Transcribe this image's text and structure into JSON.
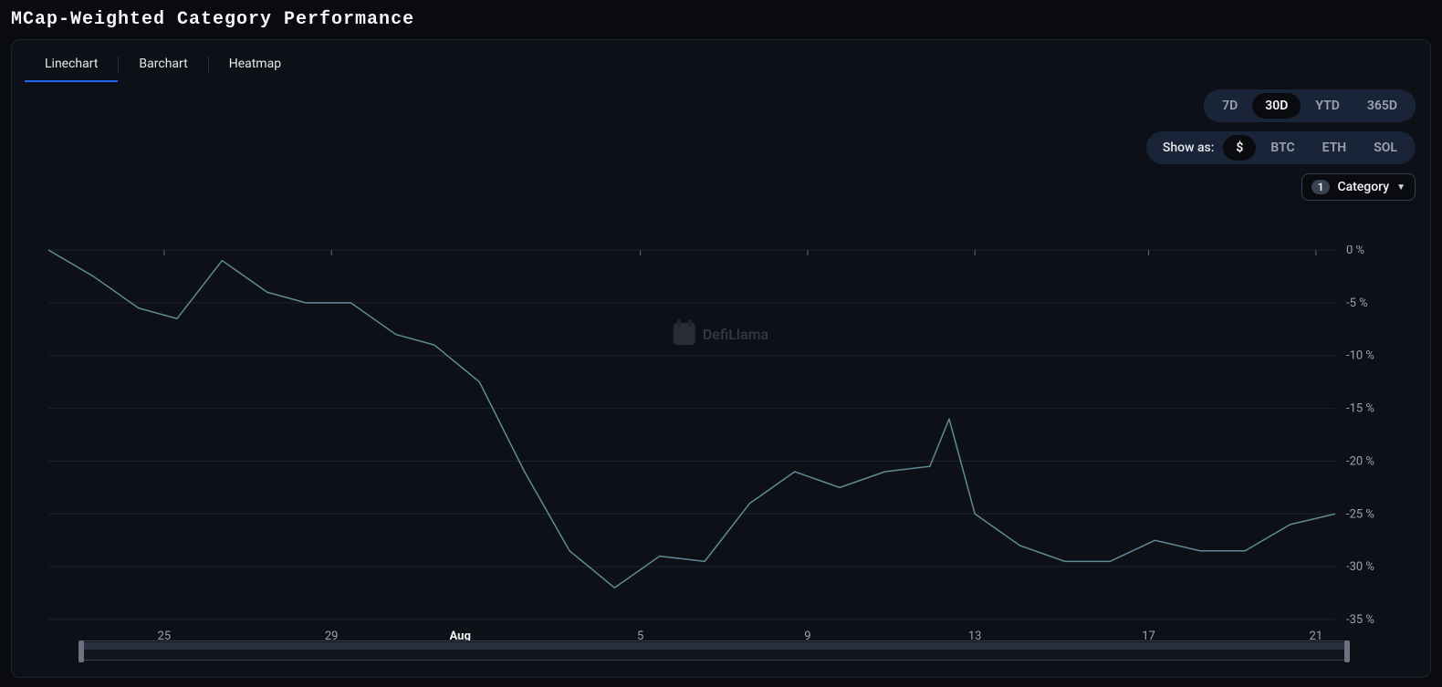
{
  "title": "MCap-Weighted Category Performance",
  "tabs": {
    "items": [
      "Linechart",
      "Barchart",
      "Heatmap"
    ],
    "active_index": 0
  },
  "period_selector": {
    "options": [
      "7D",
      "30D",
      "YTD",
      "365D"
    ],
    "active_index": 1
  },
  "denomination": {
    "label": "Show as:",
    "options": [
      "$",
      "BTC",
      "ETH",
      "SOL"
    ],
    "active_index": 0
  },
  "category_select": {
    "count": "1",
    "label": "Category"
  },
  "watermark": "DefiLlama",
  "chart": {
    "type": "line",
    "background_color": "#0e1018",
    "line_color": "#5f8a94",
    "line_width": 1.5,
    "grid_color": "#1c2230",
    "axis_label_color": "#9ca3af",
    "axis_label_fontsize": 13,
    "axis_label_bold_color": "#f3f4f6",
    "y_unit": " %",
    "ylim": [
      -35,
      0
    ],
    "ytick_step": 5,
    "yticks": [
      0,
      -5,
      -10,
      -15,
      -20,
      -25,
      -30,
      -35
    ],
    "xticks": [
      {
        "label": "25",
        "pos": 0.09,
        "bold": false
      },
      {
        "label": "29",
        "pos": 0.22,
        "bold": false
      },
      {
        "label": "Aug",
        "pos": 0.32,
        "bold": true
      },
      {
        "label": "5",
        "pos": 0.46,
        "bold": false
      },
      {
        "label": "9",
        "pos": 0.59,
        "bold": false
      },
      {
        "label": "13",
        "pos": 0.72,
        "bold": false
      },
      {
        "label": "17",
        "pos": 0.855,
        "bold": false
      },
      {
        "label": "21",
        "pos": 0.985,
        "bold": false
      }
    ],
    "tick_marks_x": [
      0.09,
      0.22,
      0.46,
      0.59,
      0.72,
      0.855,
      0.985
    ],
    "series": [
      {
        "x": 0.0,
        "y": 0.0
      },
      {
        "x": 0.035,
        "y": -2.5
      },
      {
        "x": 0.07,
        "y": -5.5
      },
      {
        "x": 0.1,
        "y": -6.5
      },
      {
        "x": 0.135,
        "y": -1.0
      },
      {
        "x": 0.17,
        "y": -4.0
      },
      {
        "x": 0.2,
        "y": -5.0
      },
      {
        "x": 0.235,
        "y": -5.0
      },
      {
        "x": 0.27,
        "y": -8.0
      },
      {
        "x": 0.3,
        "y": -9.0
      },
      {
        "x": 0.335,
        "y": -12.5
      },
      {
        "x": 0.37,
        "y": -21.0
      },
      {
        "x": 0.405,
        "y": -28.5
      },
      {
        "x": 0.44,
        "y": -32.0
      },
      {
        "x": 0.475,
        "y": -29.0
      },
      {
        "x": 0.51,
        "y": -29.5
      },
      {
        "x": 0.545,
        "y": -24.0
      },
      {
        "x": 0.58,
        "y": -21.0
      },
      {
        "x": 0.615,
        "y": -22.5
      },
      {
        "x": 0.65,
        "y": -21.0
      },
      {
        "x": 0.685,
        "y": -20.5
      },
      {
        "x": 0.7,
        "y": -16.0
      },
      {
        "x": 0.72,
        "y": -25.0
      },
      {
        "x": 0.755,
        "y": -28.0
      },
      {
        "x": 0.79,
        "y": -29.5
      },
      {
        "x": 0.825,
        "y": -29.5
      },
      {
        "x": 0.86,
        "y": -27.5
      },
      {
        "x": 0.895,
        "y": -28.5
      },
      {
        "x": 0.93,
        "y": -28.5
      },
      {
        "x": 0.965,
        "y": -26.0
      },
      {
        "x": 1.0,
        "y": -25.0
      }
    ]
  }
}
